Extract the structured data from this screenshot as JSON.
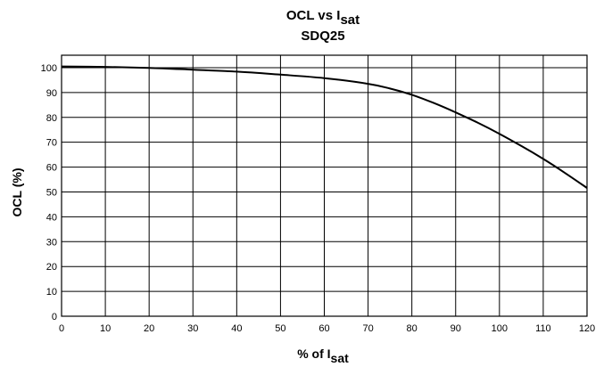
{
  "chart_data": {
    "type": "line",
    "title_main": "OCL vs I",
    "title_sub": "sat",
    "subtitle": "SDQ25",
    "xlabel_main": "% of I",
    "xlabel_sub": "sat",
    "ylabel": "OCL (%)",
    "xlim": [
      0,
      120
    ],
    "ylim": [
      0,
      105
    ],
    "grid": true,
    "x_ticks": [
      0,
      10,
      20,
      30,
      40,
      50,
      60,
      70,
      80,
      90,
      100,
      110,
      120
    ],
    "y_ticks": [
      0,
      10,
      20,
      30,
      40,
      50,
      60,
      70,
      80,
      90,
      100
    ],
    "series": [
      {
        "color": "#000000",
        "x": [
          0,
          10,
          20,
          30,
          40,
          50,
          60,
          70,
          75,
          80,
          85,
          90,
          95,
          100,
          105,
          110,
          115,
          120
        ],
        "y": [
          100.5,
          100.3,
          99.9,
          99.2,
          98.4,
          97.2,
          95.8,
          93.5,
          91.6,
          89.1,
          85.8,
          82.0,
          77.9,
          73.4,
          68.5,
          63.3,
          57.6,
          51.6
        ]
      }
    ]
  }
}
